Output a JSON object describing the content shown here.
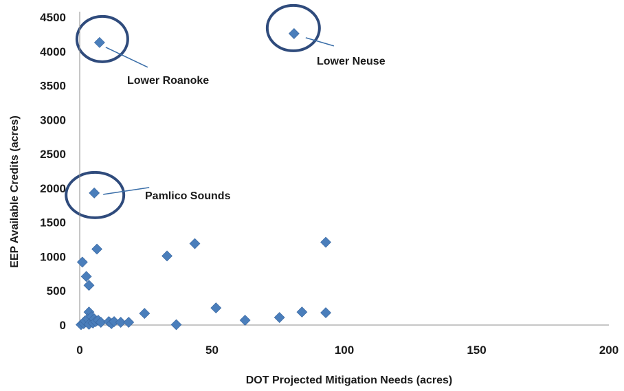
{
  "chart_data": {
    "type": "scatter",
    "xlabel": "DOT Projected Mitigation Needs (acres)",
    "ylabel": "EEP Available Credits (acres)",
    "xlim": [
      0,
      200
    ],
    "ylim": [
      0,
      4500
    ],
    "x_ticks": [
      "0",
      "50",
      "100",
      "150",
      "200"
    ],
    "y_ticks": [
      "0",
      "500",
      "1000",
      "1500",
      "2000",
      "2500",
      "3000",
      "3500",
      "4000",
      "4500"
    ],
    "grid": false,
    "legend": "none",
    "marker_color": "#4a7ebb",
    "marker": "diamond",
    "points": [
      {
        "x": 7.5,
        "y": 4130
      },
      {
        "x": 81,
        "y": 4260
      },
      {
        "x": 5.5,
        "y": 1930
      },
      {
        "x": 1,
        "y": 920
      },
      {
        "x": 2.5,
        "y": 710
      },
      {
        "x": 3.5,
        "y": 580
      },
      {
        "x": 6.5,
        "y": 1110
      },
      {
        "x": 33,
        "y": 1010
      },
      {
        "x": 43.5,
        "y": 1190
      },
      {
        "x": 93,
        "y": 1210
      },
      {
        "x": 3.5,
        "y": 190
      },
      {
        "x": 24.5,
        "y": 170
      },
      {
        "x": 51.5,
        "y": 250
      },
      {
        "x": 84,
        "y": 190
      },
      {
        "x": 93,
        "y": 180
      },
      {
        "x": 62.5,
        "y": 70
      },
      {
        "x": 75.5,
        "y": 110
      },
      {
        "x": 36.5,
        "y": 5
      },
      {
        "x": 0.5,
        "y": 5
      },
      {
        "x": 1.5,
        "y": 20
      },
      {
        "x": 2,
        "y": 60
      },
      {
        "x": 3,
        "y": 90
      },
      {
        "x": 3.5,
        "y": 10
      },
      {
        "x": 4.5,
        "y": 120
      },
      {
        "x": 5,
        "y": 30
      },
      {
        "x": 5.5,
        "y": 90
      },
      {
        "x": 6,
        "y": 50
      },
      {
        "x": 7,
        "y": 70
      },
      {
        "x": 8,
        "y": 40
      },
      {
        "x": 11,
        "y": 50
      },
      {
        "x": 12,
        "y": 20
      },
      {
        "x": 13,
        "y": 50
      },
      {
        "x": 15.5,
        "y": 40
      },
      {
        "x": 18.5,
        "y": 40
      }
    ],
    "annotations": [
      {
        "label": "Lower Roanoke",
        "x": 7.5,
        "y": 4130
      },
      {
        "label": "Lower Neuse",
        "x": 81,
        "y": 4260
      },
      {
        "label": "Pamlico Sounds",
        "x": 5.5,
        "y": 1930
      }
    ]
  }
}
